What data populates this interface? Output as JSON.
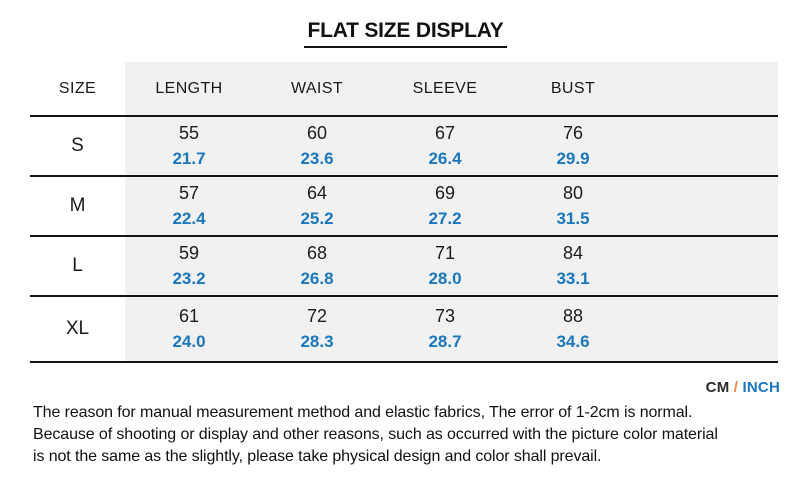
{
  "title": "FLAT SIZE DISPLAY",
  "table": {
    "size_header": "SIZE",
    "columns": [
      "LENGTH",
      "WAIST",
      "SLEEVE",
      "BUST"
    ],
    "rows": [
      {
        "size": "S",
        "cm": [
          "55",
          "60",
          "67",
          "76"
        ],
        "inch": [
          "21.7",
          "23.6",
          "26.4",
          "29.9"
        ]
      },
      {
        "size": "M",
        "cm": [
          "57",
          "64",
          "69",
          "80"
        ],
        "inch": [
          "22.4",
          "25.2",
          "27.2",
          "31.5"
        ]
      },
      {
        "size": "L",
        "cm": [
          "59",
          "68",
          "71",
          "84"
        ],
        "inch": [
          "23.2",
          "26.8",
          "28.0",
          "33.1"
        ]
      },
      {
        "size": "XL",
        "cm": [
          "61",
          "72",
          "73",
          "88"
        ],
        "inch": [
          "24.0",
          "28.3",
          "28.7",
          "34.6"
        ]
      }
    ]
  },
  "units": {
    "cm": "CM",
    "separator": "/",
    "inch": "INCH"
  },
  "note_lines": [
    "The reason for manual measurement method and elastic fabrics, The error of 1-2cm is normal.",
    "Because of shooting or display and other reasons, such as occurred with the picture color material",
    "is not the same as the slightly, please take physical design and color shall prevail."
  ],
  "colors": {
    "inch_accent": "#1b77bb",
    "separator_accent": "#f0884a",
    "table_bg": "#f1f1f1",
    "border": "#141414"
  },
  "chart_data": {
    "type": "table",
    "title": "FLAT SIZE DISPLAY",
    "columns": [
      "SIZE",
      "LENGTH",
      "WAIST",
      "SLEEVE",
      "BUST"
    ],
    "units": [
      "CM",
      "INCH"
    ],
    "rows_cm": [
      [
        "S",
        55,
        60,
        67,
        76
      ],
      [
        "M",
        57,
        64,
        69,
        80
      ],
      [
        "L",
        59,
        68,
        71,
        84
      ],
      [
        "XL",
        61,
        72,
        73,
        88
      ]
    ],
    "rows_inch": [
      [
        "S",
        21.7,
        23.6,
        26.4,
        29.9
      ],
      [
        "M",
        22.4,
        25.2,
        27.2,
        31.5
      ],
      [
        "L",
        23.2,
        26.8,
        28.0,
        33.1
      ],
      [
        "XL",
        24.0,
        28.3,
        28.7,
        34.6
      ]
    ],
    "note": "The reason for manual measurement method and elastic fabrics, The error of 1-2cm is normal. Because of shooting or display and other reasons, such as occurred with the picture color material is not the same as the slightly, please take physical design and color shall prevail."
  }
}
